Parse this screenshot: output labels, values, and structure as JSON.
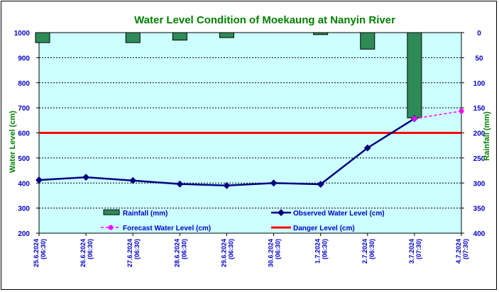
{
  "chart_data": {
    "type": "line",
    "title": "Water Level Condition of Moekaung at Nanyin River",
    "ylabel": "Water Level (cm)",
    "y2label": "Rainfall (mm)",
    "ylim": [
      200,
      1000
    ],
    "y2lim": [
      0,
      400
    ],
    "y2_reversed": true,
    "grid": true,
    "categories": [
      [
        "25.6.2024",
        "(06:30)"
      ],
      [
        "26.6.2024",
        "(06:30)"
      ],
      [
        "27.6.2024",
        "(06:30)"
      ],
      [
        "28.6.2024",
        "(06:30)"
      ],
      [
        "29.6.2024",
        "(06:30)"
      ],
      [
        "30.6.2024",
        "(06:30)"
      ],
      [
        "1.7.2024",
        "(06:30)"
      ],
      [
        "2.7.2024",
        "(06:30)"
      ],
      [
        "3.7.2024",
        "(07:30)"
      ],
      [
        "4.7.2024",
        "(07:30)"
      ]
    ],
    "yticks": [
      200,
      300,
      400,
      500,
      600,
      700,
      800,
      900,
      1000
    ],
    "y2ticks": [
      0,
      50,
      100,
      150,
      200,
      250,
      300,
      350,
      400
    ],
    "series": [
      {
        "name": "Rainfall (mm)",
        "type": "bar",
        "axis": "right",
        "color": "#2e8b57",
        "values": [
          20,
          null,
          20,
          15,
          10,
          null,
          4,
          33,
          170,
          null
        ]
      },
      {
        "name": "Observed Water Level (cm)",
        "type": "line",
        "axis": "left",
        "color": "#000080",
        "values": [
          412,
          423,
          410,
          396,
          390,
          400,
          395,
          540,
          657,
          null
        ]
      },
      {
        "name": "Forecast Water Level (cm)",
        "type": "line",
        "axis": "left",
        "color": "#ff00ff",
        "dashed": true,
        "values": [
          null,
          null,
          null,
          null,
          null,
          null,
          null,
          null,
          657,
          687
        ]
      },
      {
        "name": "Danger Level (cm)",
        "type": "hline",
        "axis": "left",
        "color": "#ff0000",
        "value": 600
      }
    ],
    "colors": {
      "plot_background": "#ccffff",
      "rainfall": "#2e8b57",
      "observed": "#000080",
      "forecast": "#ff00ff",
      "danger": "#ff0000",
      "tick_text": "#0000cc",
      "title_text": "#008000"
    }
  }
}
